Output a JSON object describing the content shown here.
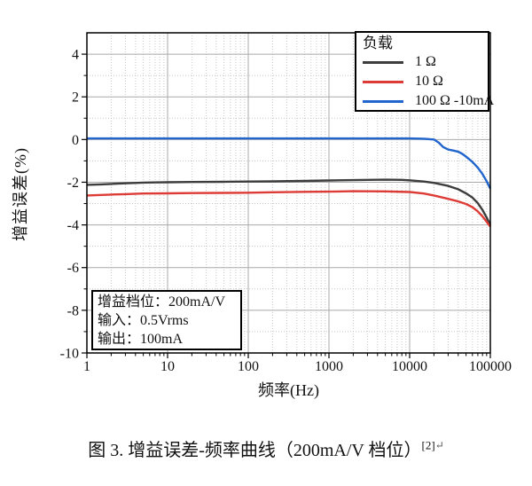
{
  "page": {
    "background": "#ffffff"
  },
  "chart_data": {
    "type": "line",
    "title": "",
    "xlabel": "频率(Hz)",
    "ylabel": "增益误差(%)",
    "x_axis": {
      "scale": "log",
      "min": 1,
      "max": 100000,
      "ticks": [
        {
          "v": 1,
          "label": "1"
        },
        {
          "v": 10,
          "label": "10"
        },
        {
          "v": 100,
          "label": "100"
        },
        {
          "v": 1000,
          "label": "1000"
        },
        {
          "v": 10000,
          "label": "10000"
        },
        {
          "v": 100000,
          "label": "100000"
        }
      ]
    },
    "y_axis": {
      "min": -10,
      "max": 5,
      "ticks": [
        {
          "v": 4,
          "label": "4"
        },
        {
          "v": 2,
          "label": "2"
        },
        {
          "v": 0,
          "label": "0"
        },
        {
          "v": -2,
          "label": "-2"
        },
        {
          "v": -4,
          "label": "-4"
        },
        {
          "v": -6,
          "label": "-6"
        },
        {
          "v": -8,
          "label": "-8"
        },
        {
          "v": -10,
          "label": "-10"
        }
      ],
      "major_grid": [
        4,
        2,
        0,
        -2,
        -4,
        -6,
        -8
      ],
      "minor_grid": [
        3,
        1,
        -1,
        -3,
        -5,
        -7,
        -9
      ]
    },
    "grid": {
      "major_color": "#a9a9a9",
      "minor_color": "#c8c8c8",
      "on": true
    },
    "legend": {
      "title": "负载",
      "position": "top-right"
    },
    "series": [
      {
        "name": "1 Ω",
        "color": "#3d3d3d",
        "points": [
          [
            1,
            -2.12
          ],
          [
            1.5,
            -2.1
          ],
          [
            2,
            -2.08
          ],
          [
            3,
            -2.05
          ],
          [
            5,
            -2.02
          ],
          [
            7,
            -2.01
          ],
          [
            10,
            -2.0
          ],
          [
            20,
            -1.99
          ],
          [
            50,
            -1.98
          ],
          [
            100,
            -1.97
          ],
          [
            200,
            -1.96
          ],
          [
            500,
            -1.94
          ],
          [
            1000,
            -1.92
          ],
          [
            2000,
            -1.9
          ],
          [
            5000,
            -1.88
          ],
          [
            8000,
            -1.89
          ],
          [
            10000,
            -1.91
          ],
          [
            15000,
            -1.97
          ],
          [
            20000,
            -2.03
          ],
          [
            30000,
            -2.17
          ],
          [
            40000,
            -2.33
          ],
          [
            50000,
            -2.52
          ],
          [
            60000,
            -2.72
          ],
          [
            70000,
            -2.98
          ],
          [
            80000,
            -3.3
          ],
          [
            90000,
            -3.65
          ],
          [
            100000,
            -4.0
          ]
        ]
      },
      {
        "name": "10 Ω",
        "color": "#dd3b35",
        "points": [
          [
            1,
            -2.62
          ],
          [
            2,
            -2.58
          ],
          [
            3,
            -2.56
          ],
          [
            5,
            -2.53
          ],
          [
            10,
            -2.52
          ],
          [
            20,
            -2.51
          ],
          [
            50,
            -2.5
          ],
          [
            100,
            -2.49
          ],
          [
            200,
            -2.47
          ],
          [
            500,
            -2.45
          ],
          [
            1000,
            -2.44
          ],
          [
            2000,
            -2.42
          ],
          [
            5000,
            -2.43
          ],
          [
            10000,
            -2.46
          ],
          [
            15000,
            -2.53
          ],
          [
            20000,
            -2.62
          ],
          [
            30000,
            -2.78
          ],
          [
            40000,
            -2.9
          ],
          [
            50000,
            -3.02
          ],
          [
            60000,
            -3.17
          ],
          [
            70000,
            -3.37
          ],
          [
            80000,
            -3.6
          ],
          [
            90000,
            -3.85
          ],
          [
            100000,
            -4.08
          ]
        ]
      },
      {
        "name": "100 Ω -10mA",
        "color": "#2165cd",
        "points": [
          [
            1,
            0.05
          ],
          [
            10,
            0.05
          ],
          [
            100,
            0.05
          ],
          [
            1000,
            0.05
          ],
          [
            10000,
            0.05
          ],
          [
            15000,
            0.04
          ],
          [
            20000,
            0.0
          ],
          [
            23000,
            -0.15
          ],
          [
            26000,
            -0.35
          ],
          [
            30000,
            -0.47
          ],
          [
            35000,
            -0.52
          ],
          [
            40000,
            -0.57
          ],
          [
            45000,
            -0.67
          ],
          [
            50000,
            -0.8
          ],
          [
            60000,
            -1.05
          ],
          [
            70000,
            -1.32
          ],
          [
            80000,
            -1.62
          ],
          [
            90000,
            -1.95
          ],
          [
            100000,
            -2.3
          ]
        ]
      }
    ],
    "annotation": {
      "lines": [
        "增益档位：200mA/V",
        "输入：0.5Vrms",
        "输出：100mA"
      ]
    }
  },
  "caption": {
    "text": "图 3. 增益误差-频率曲线（200mA/V 档位）",
    "superscript": "[2]",
    "return_mark": "↵"
  }
}
